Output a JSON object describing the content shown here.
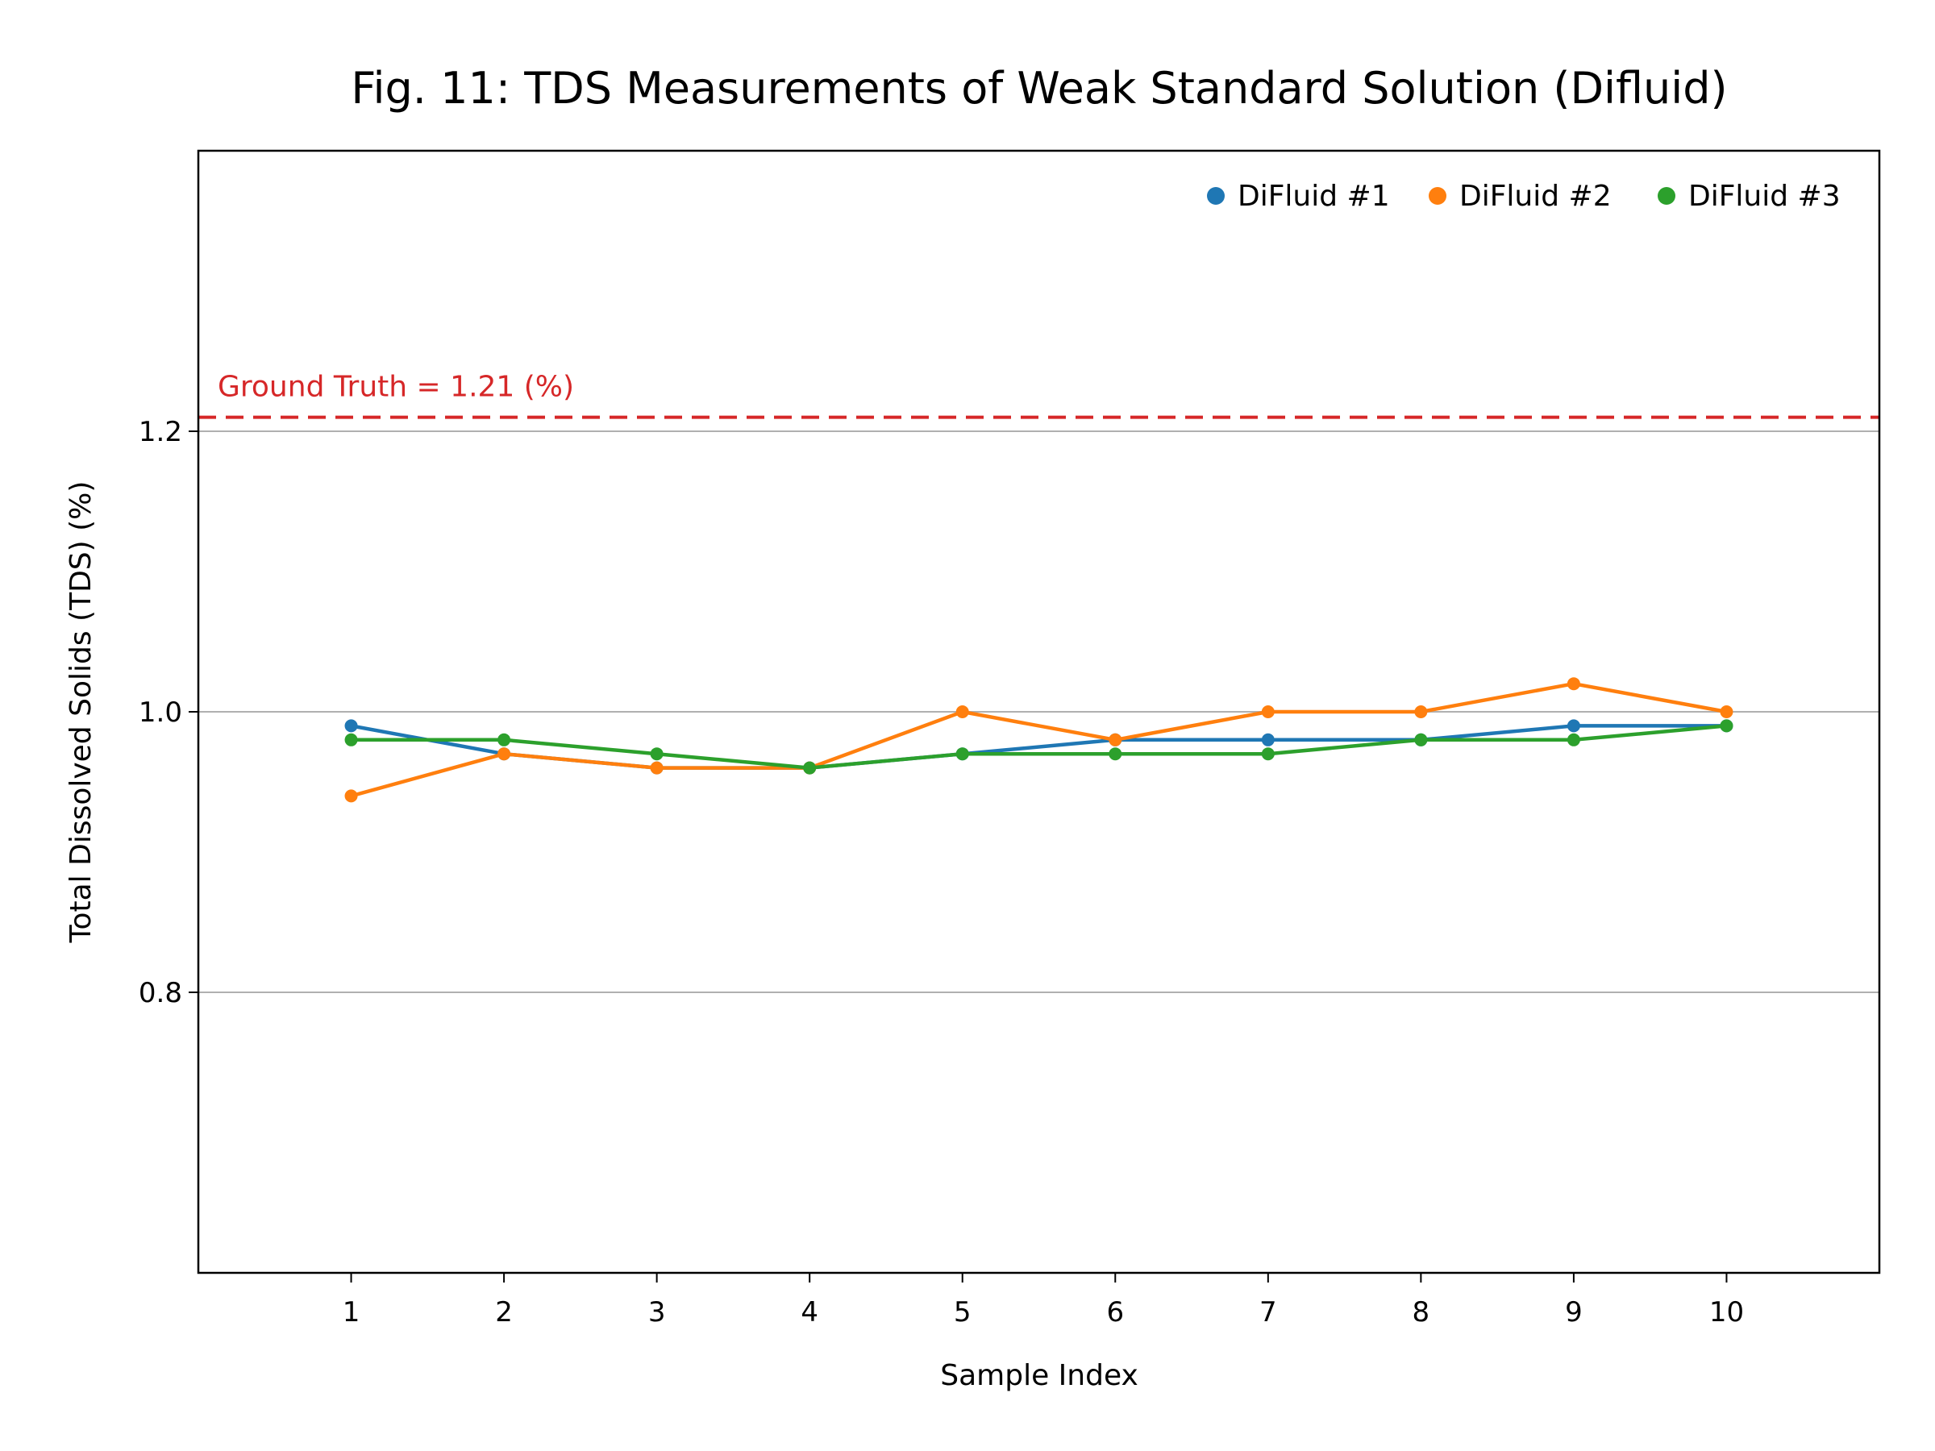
{
  "chart_data": {
    "type": "line",
    "title": "Fig. 11: TDS Measurements of Weak Standard Solution (Difluid)",
    "xlabel": "Sample Index",
    "ylabel": "Total Dissolved Solids (TDS) (%)",
    "x": [
      1,
      2,
      3,
      4,
      5,
      6,
      7,
      8,
      9,
      10
    ],
    "x_ticks": [
      "1",
      "2",
      "3",
      "4",
      "5",
      "6",
      "7",
      "8",
      "9",
      "10"
    ],
    "xlim": [
      0,
      11
    ],
    "ylim": [
      0.6,
      1.4
    ],
    "y_ticks": [
      "0.8",
      "1.0",
      "1.2"
    ],
    "y_tick_values": [
      0.8,
      1.0,
      1.2
    ],
    "grid": "horizontal",
    "legend_position": "top-right",
    "series": [
      {
        "name": "DiFluid #1",
        "color": "#1f77b4",
        "values": [
          0.99,
          0.97,
          0.96,
          0.96,
          0.97,
          0.98,
          0.98,
          0.98,
          0.99,
          0.99
        ]
      },
      {
        "name": "DiFluid #2",
        "color": "#ff7f0e",
        "values": [
          0.94,
          0.97,
          0.96,
          0.96,
          1.0,
          0.98,
          1.0,
          1.0,
          1.02,
          1.0
        ]
      },
      {
        "name": "DiFluid #3",
        "color": "#2ca02c",
        "values": [
          0.98,
          0.98,
          0.97,
          0.96,
          0.97,
          0.97,
          0.97,
          0.98,
          0.98,
          0.99
        ]
      }
    ],
    "reference_line": {
      "value": 1.21,
      "label": "Ground Truth = 1.21 (%)",
      "color": "#d62728",
      "style": "dashed"
    }
  }
}
